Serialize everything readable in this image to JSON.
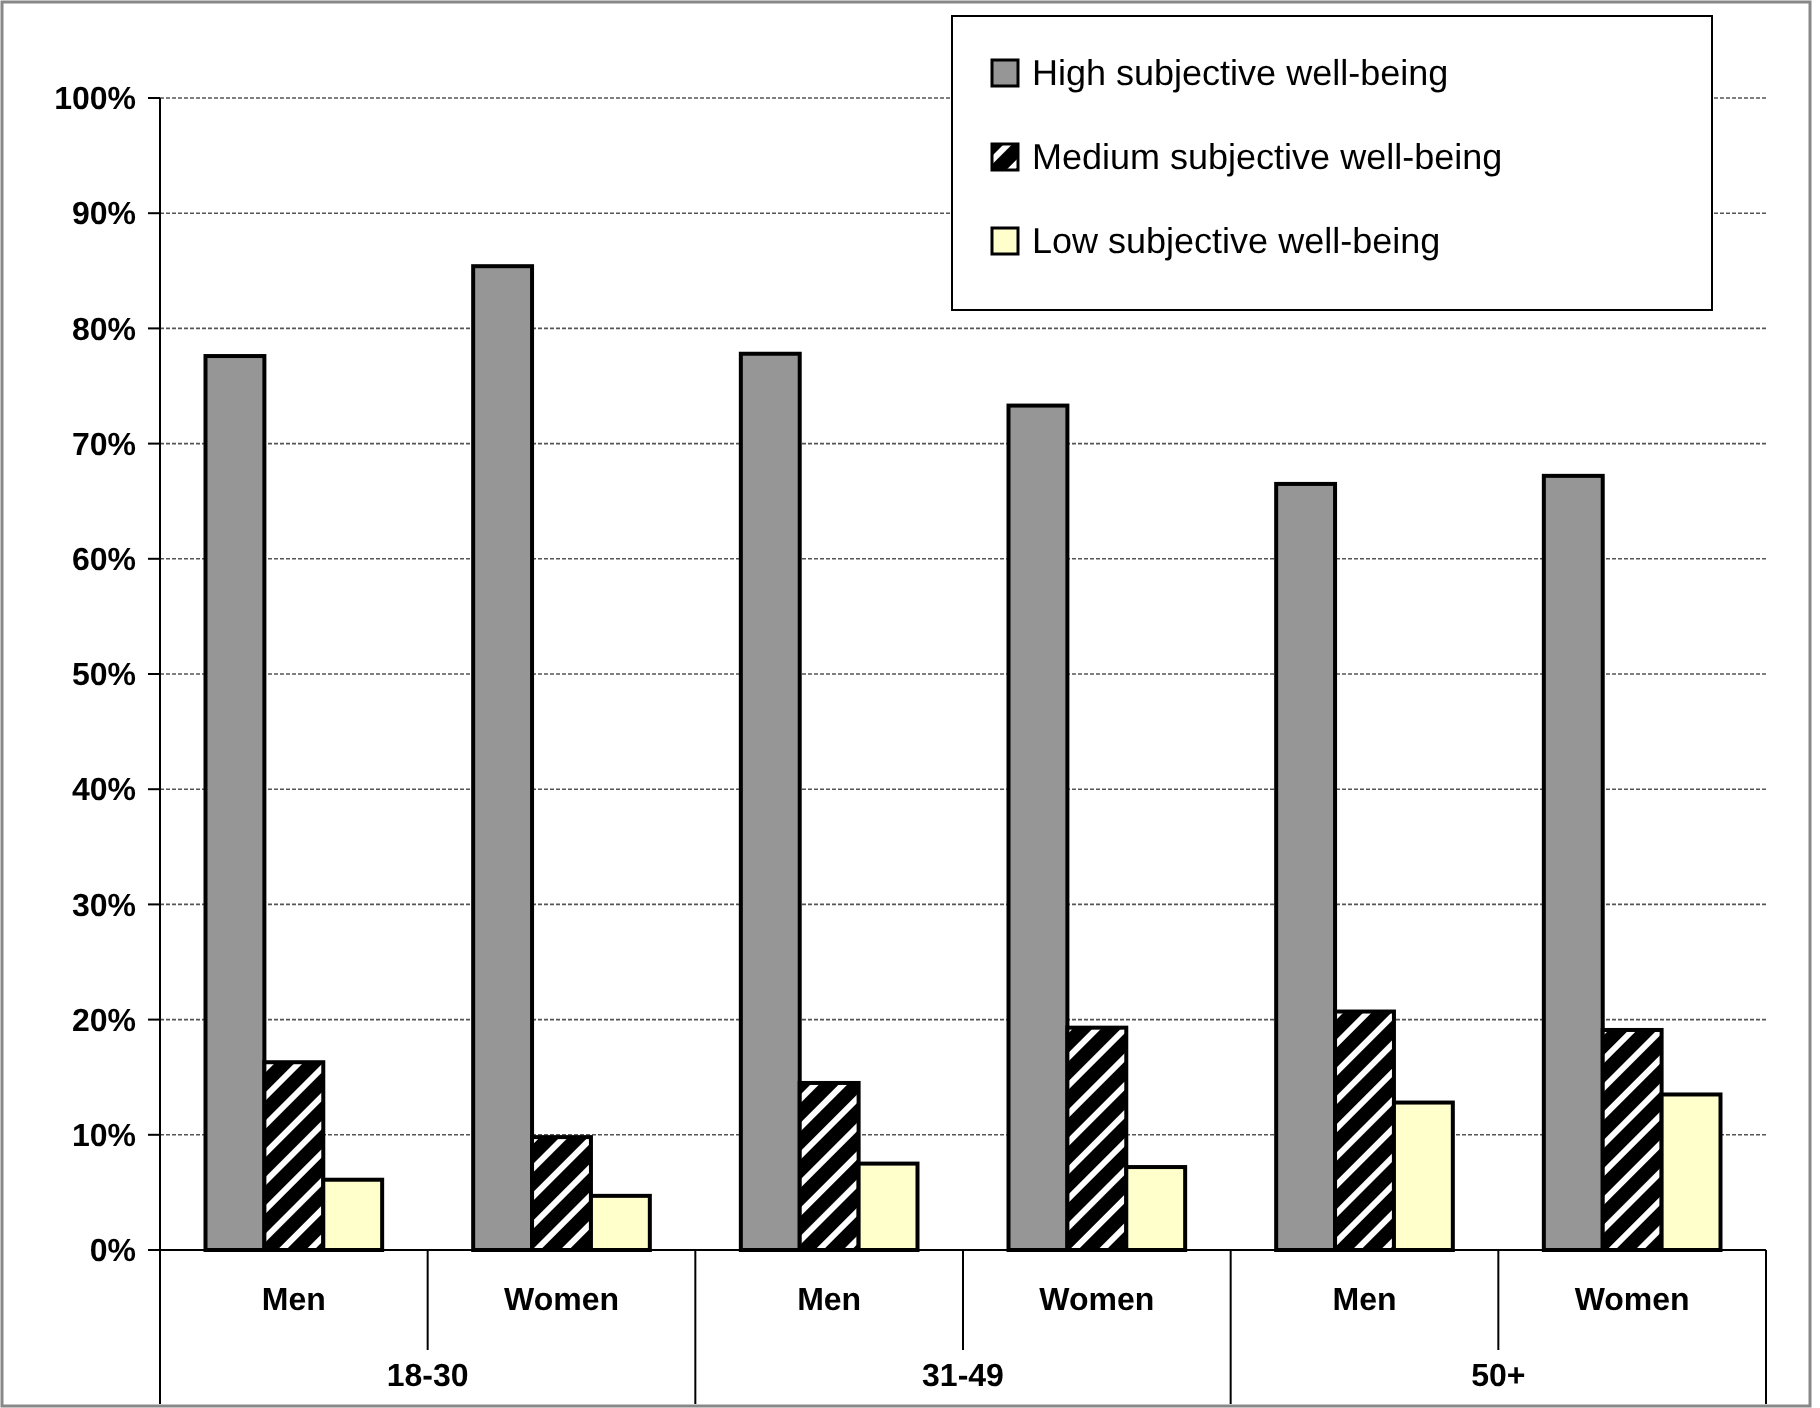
{
  "chart_data": {
    "type": "bar",
    "categories": [
      "Men",
      "Women",
      "Men",
      "Women",
      "Men",
      "Women"
    ],
    "annotations": [
      "18-30",
      "31-49",
      "50+"
    ],
    "series": [
      {
        "name": "High subjective well-being",
        "color": "#969696",
        "values": [
          77.6,
          85.4,
          77.8,
          73.3,
          66.5,
          67.2
        ]
      },
      {
        "name": "Medium subjective well-being",
        "color": "#000000",
        "values": [
          16.3,
          9.8,
          14.5,
          19.3,
          20.7,
          19.1
        ]
      },
      {
        "name": "Low subjective well-being",
        "color": "#ffffcc",
        "values": [
          6.1,
          4.7,
          7.5,
          7.2,
          12.8,
          13.5
        ]
      }
    ],
    "ylim": [
      0,
      100
    ],
    "yticks": [
      {
        "value": 0,
        "label": "0%"
      },
      {
        "value": 10,
        "label": "10%"
      },
      {
        "value": 20,
        "label": "20%"
      },
      {
        "value": 30,
        "label": "30%"
      },
      {
        "value": 40,
        "label": "40%"
      },
      {
        "value": 50,
        "label": "50%"
      },
      {
        "value": 60,
        "label": "60%"
      },
      {
        "value": 70,
        "label": "70%"
      },
      {
        "value": 80,
        "label": "80%"
      },
      {
        "value": 90,
        "label": "90%"
      },
      {
        "value": 100,
        "label": "100%"
      }
    ],
    "grid": "y",
    "legend": "top right"
  }
}
